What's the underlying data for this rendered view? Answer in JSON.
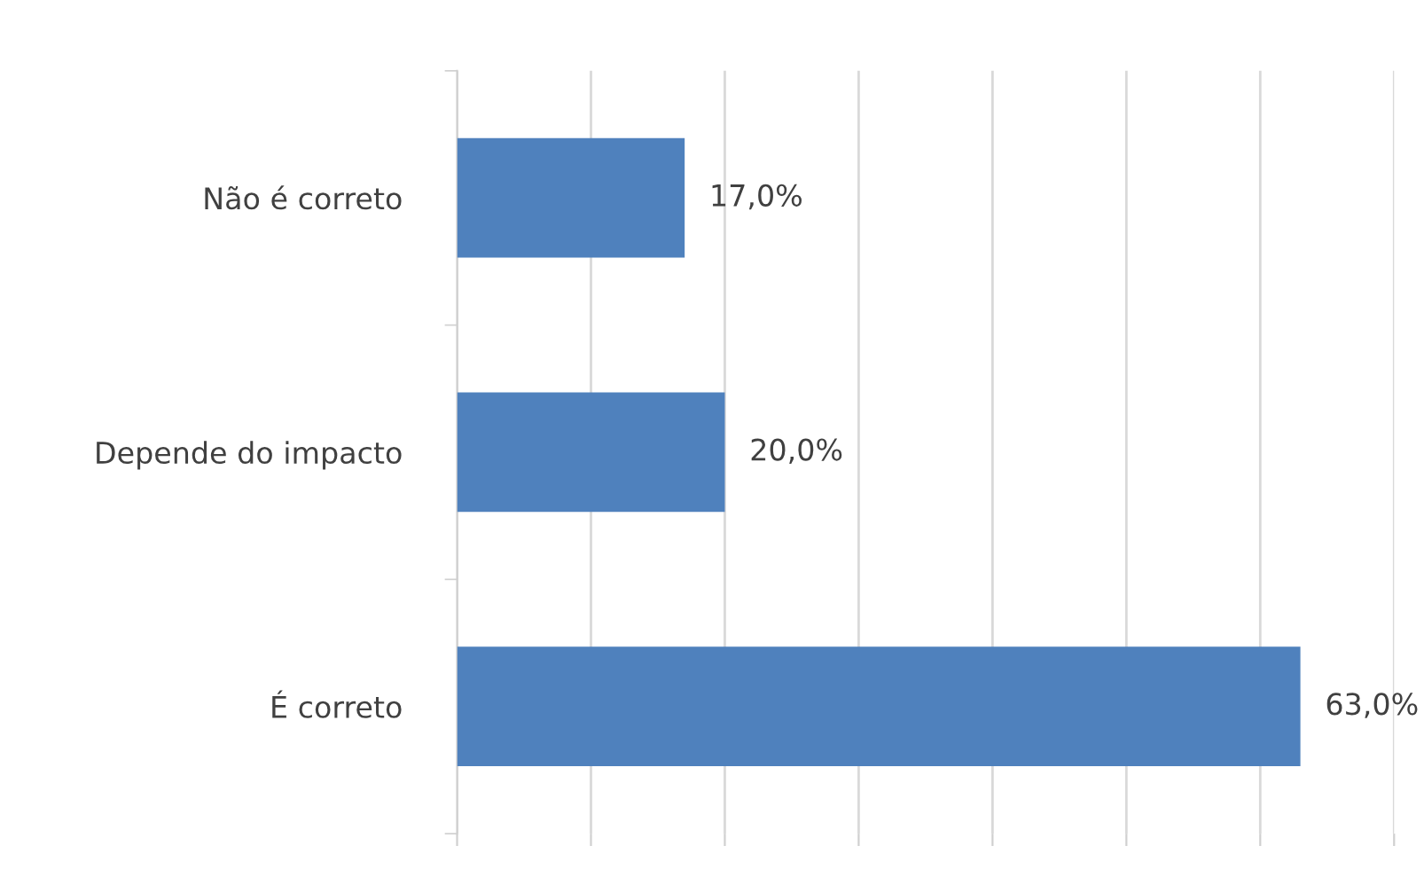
{
  "chart_data": {
    "type": "bar",
    "orientation": "horizontal",
    "categories": [
      "Não é correto",
      "Depende do impacto",
      "É correto"
    ],
    "values": [
      17.0,
      20.0,
      63.0
    ],
    "value_labels": [
      "17,0%",
      "20,0%",
      "63,0%"
    ],
    "color": "#4f81bd",
    "xlim": [
      0,
      70
    ],
    "xticks": [
      {
        "value": 0,
        "label": null
      },
      {
        "value": 10,
        "label": null
      },
      {
        "value": 20,
        "label": null
      },
      {
        "value": 30,
        "label": null
      },
      {
        "value": 40,
        "label": null
      },
      {
        "value": 50,
        "label": null
      },
      {
        "value": 60,
        "label": null
      },
      {
        "value": 70,
        "label": null
      }
    ],
    "tick_labels": "y",
    "grid": "x",
    "legend": false
  }
}
